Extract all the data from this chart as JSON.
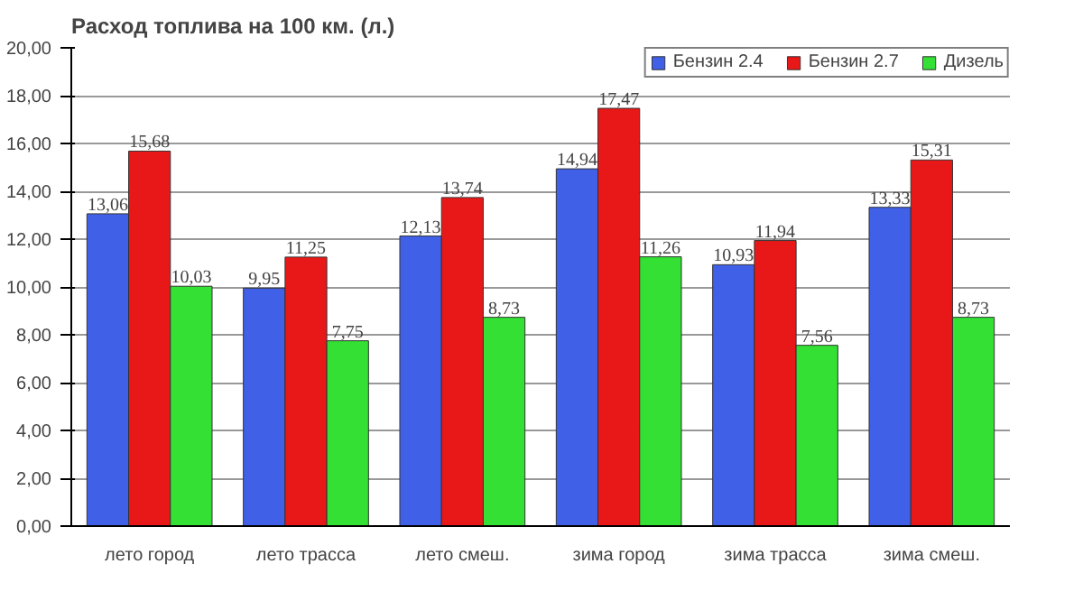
{
  "chart_data": {
    "type": "bar",
    "title": "Расход топлива на 100 км. (л.)",
    "categories": [
      "лето город",
      "лето трасса",
      "лето смеш.",
      "зима город",
      "зима трасса",
      "зима смеш."
    ],
    "series": [
      {
        "name": "Бензин 2.4",
        "color": "#4060e8",
        "values": [
          13.06,
          9.95,
          12.13,
          14.94,
          10.93,
          13.33
        ],
        "value_labels": [
          "13,06",
          "9,95",
          "12,13",
          "14,94",
          "10,93",
          "13,33"
        ]
      },
      {
        "name": "Бензин 2.7",
        "color": "#e81818",
        "values": [
          15.68,
          11.25,
          13.74,
          17.47,
          11.94,
          15.31
        ],
        "value_labels": [
          "15,68",
          "11,25",
          "13,74",
          "17,47",
          "11,94",
          "15,31"
        ]
      },
      {
        "name": "Дизель",
        "color": "#33e033",
        "values": [
          10.03,
          7.75,
          8.73,
          11.26,
          7.56,
          8.73
        ],
        "value_labels": [
          "10,03",
          "7,75",
          "8,73",
          "11,26",
          "7,56",
          "8,73"
        ]
      }
    ],
    "ylim": [
      0,
      20
    ],
    "yticks": [
      {
        "value": 0,
        "label": "0,00"
      },
      {
        "value": 2,
        "label": "2,00"
      },
      {
        "value": 4,
        "label": "4,00"
      },
      {
        "value": 6,
        "label": "6,00"
      },
      {
        "value": 8,
        "label": "8,00"
      },
      {
        "value": 10,
        "label": "10,00"
      },
      {
        "value": 12,
        "label": "12,00"
      },
      {
        "value": 14,
        "label": "14,00"
      },
      {
        "value": 16,
        "label": "16,00"
      },
      {
        "value": 18,
        "label": "18,00"
      },
      {
        "value": 20,
        "label": "20,00"
      }
    ],
    "grid": "y",
    "legend": "top right"
  }
}
